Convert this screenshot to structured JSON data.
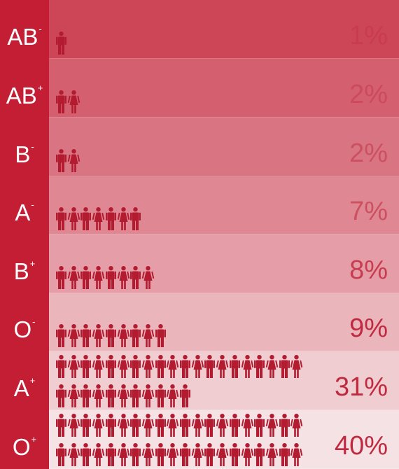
{
  "chart_data": {
    "type": "bar",
    "categories": [
      "AB-",
      "AB+",
      "B-",
      "A-",
      "B+",
      "O-",
      "A+",
      "O+"
    ],
    "values": [
      1,
      2,
      2,
      7,
      8,
      9,
      31,
      40
    ],
    "labels": [
      {
        "type": "AB",
        "sign": "-",
        "pct": "1%"
      },
      {
        "type": "AB",
        "sign": "+",
        "pct": "2%"
      },
      {
        "type": "B",
        "sign": "-",
        "pct": "2%"
      },
      {
        "type": "A",
        "sign": "-",
        "pct": "7%"
      },
      {
        "type": "B",
        "sign": "+",
        "pct": "8%"
      },
      {
        "type": "O",
        "sign": "-",
        "pct": "9%"
      },
      {
        "type": "A",
        "sign": "+",
        "pct": "31%"
      },
      {
        "type": "O",
        "sign": "+",
        "pct": "40%"
      }
    ],
    "row_colors": [
      "#cc4657",
      "#d45f6f",
      "#d97583",
      "#df8894",
      "#e59ea7",
      "#ebb5bc",
      "#f0cdd1",
      "#f5e2e5"
    ],
    "pct_colors": [
      "#c93c4e",
      "#cc4a5b",
      "#cc5060",
      "#cc5060",
      "#c83c4f",
      "#c02a40",
      "#c02a40",
      "#c02a40"
    ],
    "icon_color": "#b31b30",
    "label_color": "#ffffff",
    "sidebar_color": "#c41e35"
  }
}
